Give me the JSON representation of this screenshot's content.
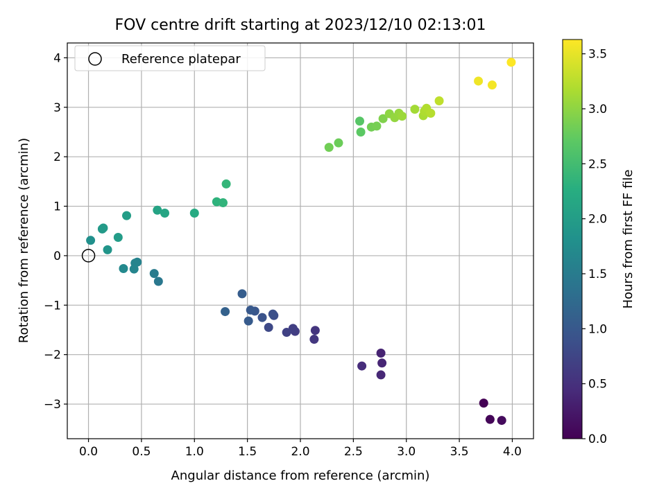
{
  "chart_data": {
    "type": "scatter",
    "title": "FOV centre drift starting at 2023/12/10 02:13:01",
    "xlabel": "Angular distance from reference (arcmin)",
    "ylabel": "Rotation from reference (arcmin)",
    "xlim": [
      -0.2,
      4.2
    ],
    "ylim": [
      -3.7,
      4.3
    ],
    "xticks": [
      0.0,
      0.5,
      1.0,
      1.5,
      2.0,
      2.5,
      3.0,
      3.5,
      4.0
    ],
    "xtick_labels": [
      "0.0",
      "0.5",
      "1.0",
      "1.5",
      "2.0",
      "2.5",
      "3.0",
      "3.5",
      "4.0"
    ],
    "yticks": [
      -3,
      -2,
      -1,
      0,
      1,
      2,
      3,
      4
    ],
    "ytick_labels": [
      "−3",
      "−2",
      "−1",
      "0",
      "1",
      "2",
      "3",
      "4"
    ],
    "grid": true,
    "legend": {
      "position": "top-left",
      "entries": [
        {
          "label": "Reference platepar",
          "marker": "open-circle"
        }
      ]
    },
    "reference_point": {
      "x": 0.0,
      "y": 0.0
    },
    "colorbar": {
      "label": "Hours from first FF file",
      "colormap": "viridis",
      "range": [
        0.0,
        3.63
      ],
      "ticks": [
        0.0,
        0.5,
        1.0,
        1.5,
        2.0,
        2.5,
        3.0,
        3.5
      ],
      "tick_labels": [
        "0.0",
        "0.5",
        "1.0",
        "1.5",
        "2.0",
        "2.5",
        "3.0",
        "3.5"
      ]
    },
    "points": [
      {
        "x": 3.73,
        "y": -2.98,
        "c": 0.0
      },
      {
        "x": 3.79,
        "y": -3.31,
        "c": 0.05
      },
      {
        "x": 3.9,
        "y": -3.33,
        "c": 0.1
      },
      {
        "x": 2.76,
        "y": -1.97,
        "c": 0.35
      },
      {
        "x": 2.77,
        "y": -2.17,
        "c": 0.38
      },
      {
        "x": 2.76,
        "y": -2.41,
        "c": 0.4
      },
      {
        "x": 2.58,
        "y": -2.23,
        "c": 0.45
      },
      {
        "x": 2.14,
        "y": -1.51,
        "c": 0.55
      },
      {
        "x": 2.13,
        "y": -1.69,
        "c": 0.58
      },
      {
        "x": 1.95,
        "y": -1.53,
        "c": 0.65
      },
      {
        "x": 1.93,
        "y": -1.47,
        "c": 0.67
      },
      {
        "x": 1.87,
        "y": -1.55,
        "c": 0.7
      },
      {
        "x": 1.7,
        "y": -1.45,
        "c": 0.8
      },
      {
        "x": 1.75,
        "y": -1.21,
        "c": 0.85
      },
      {
        "x": 1.74,
        "y": -1.18,
        "c": 0.88
      },
      {
        "x": 1.64,
        "y": -1.25,
        "c": 0.92
      },
      {
        "x": 1.57,
        "y": -1.12,
        "c": 0.97
      },
      {
        "x": 1.53,
        "y": -1.1,
        "c": 1.0
      },
      {
        "x": 1.51,
        "y": -1.32,
        "c": 1.03
      },
      {
        "x": 1.45,
        "y": -0.77,
        "c": 1.07
      },
      {
        "x": 1.29,
        "y": -1.13,
        "c": 1.12
      },
      {
        "x": 0.66,
        "y": -0.52,
        "c": 1.45
      },
      {
        "x": 0.62,
        "y": -0.36,
        "c": 1.5
      },
      {
        "x": 0.46,
        "y": -0.13,
        "c": 1.6
      },
      {
        "x": 0.44,
        "y": -0.15,
        "c": 1.62
      },
      {
        "x": 0.43,
        "y": -0.27,
        "c": 1.64
      },
      {
        "x": 0.33,
        "y": -0.26,
        "c": 1.7
      },
      {
        "x": 0.02,
        "y": 0.31,
        "c": 1.8
      },
      {
        "x": 0.18,
        "y": 0.12,
        "c": 1.88
      },
      {
        "x": 0.13,
        "y": 0.54,
        "c": 1.93
      },
      {
        "x": 0.14,
        "y": 0.56,
        "c": 1.95
      },
      {
        "x": 0.28,
        "y": 0.37,
        "c": 1.98
      },
      {
        "x": 0.36,
        "y": 0.81,
        "c": 2.0
      },
      {
        "x": 0.65,
        "y": 0.92,
        "c": 2.1
      },
      {
        "x": 0.72,
        "y": 0.86,
        "c": 2.13
      },
      {
        "x": 1.0,
        "y": 0.86,
        "c": 2.2
      },
      {
        "x": 1.21,
        "y": 1.09,
        "c": 2.33
      },
      {
        "x": 1.27,
        "y": 1.07,
        "c": 2.35
      },
      {
        "x": 1.3,
        "y": 1.45,
        "c": 2.38
      },
      {
        "x": 2.27,
        "y": 2.19,
        "c": 2.83
      },
      {
        "x": 2.36,
        "y": 2.28,
        "c": 2.8
      },
      {
        "x": 2.56,
        "y": 2.72,
        "c": 2.66
      },
      {
        "x": 2.57,
        "y": 2.5,
        "c": 2.7
      },
      {
        "x": 2.67,
        "y": 2.6,
        "c": 2.84
      },
      {
        "x": 2.72,
        "y": 2.62,
        "c": 2.86
      },
      {
        "x": 2.78,
        "y": 2.77,
        "c": 2.92
      },
      {
        "x": 2.84,
        "y": 2.87,
        "c": 3.0
      },
      {
        "x": 2.89,
        "y": 2.79,
        "c": 3.03
      },
      {
        "x": 2.93,
        "y": 2.88,
        "c": 3.05
      },
      {
        "x": 2.96,
        "y": 2.82,
        "c": 3.08
      },
      {
        "x": 3.08,
        "y": 2.96,
        "c": 3.12
      },
      {
        "x": 3.16,
        "y": 2.83,
        "c": 3.15
      },
      {
        "x": 3.17,
        "y": 2.92,
        "c": 3.18
      },
      {
        "x": 3.19,
        "y": 2.98,
        "c": 3.2
      },
      {
        "x": 3.23,
        "y": 2.88,
        "c": 3.22
      },
      {
        "x": 3.31,
        "y": 3.13,
        "c": 3.28
      },
      {
        "x": 3.68,
        "y": 3.53,
        "c": 3.55
      },
      {
        "x": 3.81,
        "y": 3.45,
        "c": 3.58
      },
      {
        "x": 3.99,
        "y": 3.91,
        "c": 3.63
      }
    ]
  }
}
